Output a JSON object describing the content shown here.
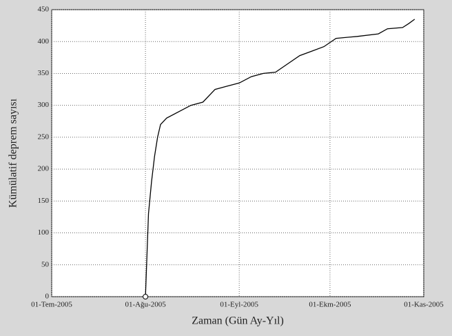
{
  "chart_data": {
    "type": "line",
    "xlabel": "Zaman (Gün Ay-Yıl)",
    "ylabel": "Kümülatif deprem sayısı",
    "x": [
      "2005-08-01",
      "2005-08-02",
      "2005-08-03",
      "2005-08-04",
      "2005-08-05",
      "2005-08-06",
      "2005-08-08",
      "2005-08-12",
      "2005-08-16",
      "2005-08-20",
      "2005-08-24",
      "2005-08-28",
      "2005-09-01",
      "2005-09-05",
      "2005-09-09",
      "2005-09-13",
      "2005-09-17",
      "2005-09-21",
      "2005-09-25",
      "2005-09-29",
      "2005-10-03",
      "2005-10-10",
      "2005-10-17",
      "2005-10-20",
      "2005-10-25",
      "2005-10-27",
      "2005-10-29"
    ],
    "series": [
      {
        "color": "#000000",
        "values": [
          0,
          130,
          180,
          220,
          250,
          270,
          280,
          290,
          300,
          305,
          325,
          330,
          335,
          345,
          350,
          352,
          365,
          378,
          385,
          392,
          405,
          408,
          412,
          420,
          422,
          428,
          435
        ]
      }
    ],
    "xlim": [
      "2005-07-01",
      "2005-11-01"
    ],
    "xticks": [
      {
        "value": "2005-07-01",
        "label": "01-Tem-2005"
      },
      {
        "value": "2005-08-01",
        "label": "01-Ağu-2005"
      },
      {
        "value": "2005-09-01",
        "label": "01-Eyl-2005"
      },
      {
        "value": "2005-10-01",
        "label": "01-Ekm-2005"
      },
      {
        "value": "2005-11-01",
        "label": "01-Kas-2005"
      }
    ],
    "ylim": [
      0,
      450
    ],
    "yticks": [
      0,
      50,
      100,
      150,
      200,
      250,
      300,
      350,
      400,
      450
    ],
    "grid": true
  }
}
